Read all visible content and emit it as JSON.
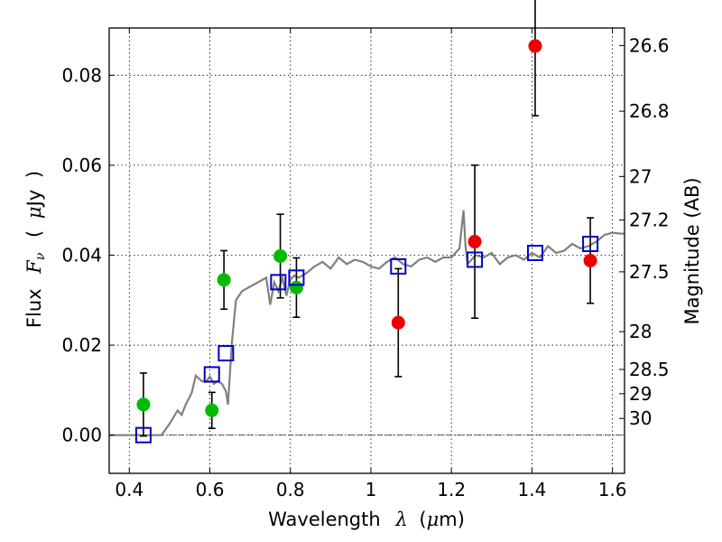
{
  "chart_data": {
    "type": "scatter",
    "xlabel": {
      "text": "Wavelength",
      "symbol": "λ",
      "unit_open": "(",
      "unit_mu": "μ",
      "unit_rest": "m)"
    },
    "ylabel": {
      "text": "Flux",
      "symbol": "F",
      "subscript": "ν",
      "unit_open": "(",
      "unit_mu": "μ",
      "unit_rest": "Jy",
      "unit_close": ")"
    },
    "y2label": "Magnitude (AB)",
    "xlim": [
      0.35,
      1.63
    ],
    "ylim": [
      -0.0085,
      0.0905
    ],
    "grid": true,
    "x_ticks": [
      {
        "value": 0.4,
        "label": "0.4"
      },
      {
        "value": 0.6,
        "label": "0.6"
      },
      {
        "value": 0.8,
        "label": "0.8"
      },
      {
        "value": 1.0,
        "label": "1"
      },
      {
        "value": 1.2,
        "label": "1.2"
      },
      {
        "value": 1.4,
        "label": "1.4"
      },
      {
        "value": 1.6,
        "label": "1.6"
      }
    ],
    "y_ticks": [
      {
        "value": 0.0,
        "label": "0.00"
      },
      {
        "value": 0.02,
        "label": "0.02"
      },
      {
        "value": 0.04,
        "label": "0.04"
      },
      {
        "value": 0.06,
        "label": "0.06"
      },
      {
        "value": 0.08,
        "label": "0.08"
      }
    ],
    "mag_ticks": [
      {
        "value": 0.0866,
        "label": "26.6"
      },
      {
        "value": 0.072,
        "label": "26.8"
      },
      {
        "value": 0.0575,
        "label": "27"
      },
      {
        "value": 0.0478,
        "label": "27.2"
      },
      {
        "value": 0.0363,
        "label": "27.5"
      },
      {
        "value": 0.023,
        "label": "28"
      },
      {
        "value": 0.0146,
        "label": "28.5"
      },
      {
        "value": 0.0092,
        "label": "29"
      },
      {
        "value": 0.0037,
        "label": "30"
      }
    ],
    "zero_line": 0.0,
    "colors": {
      "model": "#808080",
      "green": "#00bb00",
      "red": "#ee0000",
      "square": "#0000cc",
      "errorbar": "#000000",
      "grid": "#000000"
    },
    "model_spectrum": {
      "x": [
        0.35,
        0.48,
        0.5,
        0.52,
        0.53,
        0.54,
        0.55,
        0.555,
        0.565,
        0.575,
        0.58,
        0.59,
        0.6,
        0.61,
        0.62,
        0.63,
        0.64,
        0.645,
        0.655,
        0.665,
        0.68,
        0.7,
        0.72,
        0.74,
        0.75,
        0.76,
        0.77,
        0.78,
        0.79,
        0.8,
        0.81,
        0.82,
        0.84,
        0.86,
        0.88,
        0.9,
        0.92,
        0.94,
        0.96,
        0.98,
        1.0,
        1.02,
        1.04,
        1.06,
        1.08,
        1.1,
        1.12,
        1.14,
        1.16,
        1.18,
        1.2,
        1.22,
        1.23,
        1.235,
        1.24,
        1.26,
        1.28,
        1.3,
        1.32,
        1.34,
        1.36,
        1.38,
        1.4,
        1.42,
        1.44,
        1.46,
        1.48,
        1.5,
        1.52,
        1.54,
        1.56,
        1.58,
        1.6,
        1.62,
        1.63
      ],
      "y": [
        0.0,
        0.0,
        0.0025,
        0.0055,
        0.0045,
        0.0068,
        0.0085,
        0.0094,
        0.0132,
        0.0124,
        0.012,
        0.0118,
        0.013,
        0.0114,
        0.012,
        0.0114,
        0.0097,
        0.0068,
        0.021,
        0.03,
        0.032,
        0.033,
        0.034,
        0.035,
        0.029,
        0.034,
        0.032,
        0.035,
        0.031,
        0.0345,
        0.0355,
        0.035,
        0.036,
        0.0375,
        0.0385,
        0.037,
        0.0395,
        0.038,
        0.039,
        0.0385,
        0.0375,
        0.037,
        0.0385,
        0.0395,
        0.038,
        0.0375,
        0.039,
        0.0395,
        0.0385,
        0.0395,
        0.0395,
        0.0415,
        0.05,
        0.042,
        0.038,
        0.04,
        0.0395,
        0.0405,
        0.038,
        0.0395,
        0.04,
        0.039,
        0.0405,
        0.0395,
        0.042,
        0.0405,
        0.041,
        0.0425,
        0.0415,
        0.042,
        0.043,
        0.0445,
        0.045,
        0.0448,
        0.0448
      ]
    },
    "series": [
      {
        "marker": "circle",
        "color": "green",
        "points": [
          {
            "x": 0.435,
            "y": 0.0068,
            "yerr": 0.007
          },
          {
            "x": 0.605,
            "y": 0.0055,
            "yerr": 0.004
          },
          {
            "x": 0.635,
            "y": 0.0345,
            "yerr": 0.0065
          },
          {
            "x": 0.775,
            "y": 0.0398,
            "yerr": 0.0093
          },
          {
            "x": 0.815,
            "y": 0.0328,
            "yerr": 0.0066
          }
        ]
      },
      {
        "marker": "circle",
        "color": "red",
        "points": [
          {
            "x": 1.068,
            "y": 0.025,
            "yerr": 0.012
          },
          {
            "x": 1.258,
            "y": 0.043,
            "yerr": 0.017
          },
          {
            "x": 1.408,
            "y": 0.0865,
            "yerr": 0.0155
          },
          {
            "x": 1.545,
            "y": 0.0388,
            "yerr": 0.0095
          }
        ]
      },
      {
        "marker": "square",
        "color": "square",
        "points": [
          {
            "x": 0.435,
            "y": 0.0
          },
          {
            "x": 0.605,
            "y": 0.0135
          },
          {
            "x": 0.64,
            "y": 0.0182
          },
          {
            "x": 0.77,
            "y": 0.034
          },
          {
            "x": 0.815,
            "y": 0.035
          },
          {
            "x": 1.068,
            "y": 0.0375
          },
          {
            "x": 1.258,
            "y": 0.039
          },
          {
            "x": 1.408,
            "y": 0.0405
          },
          {
            "x": 1.545,
            "y": 0.0425
          }
        ]
      }
    ]
  }
}
